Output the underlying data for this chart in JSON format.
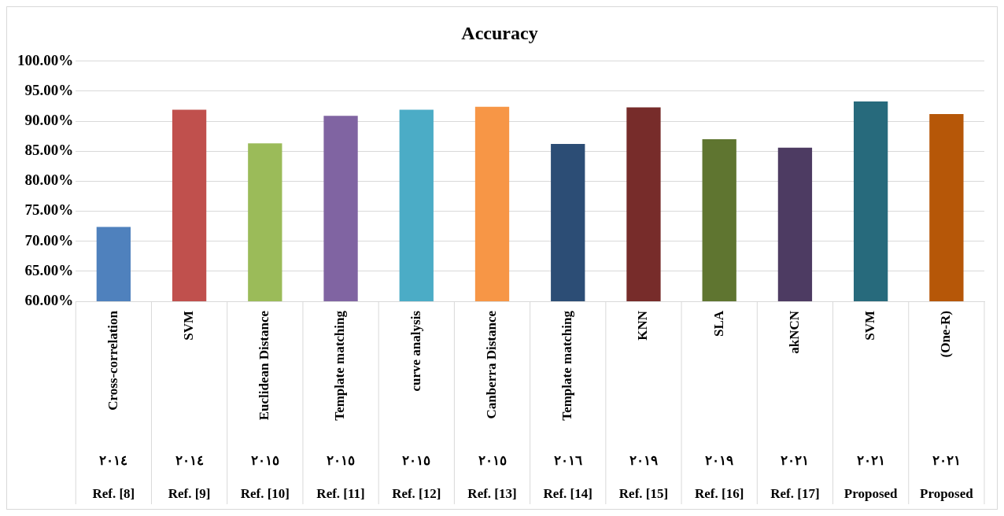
{
  "chart_data": {
    "type": "bar",
    "title": "Accuracy",
    "categories": [
      "Cross-correlation\n٢٠١٤\nRef. [8]",
      "SVM\n٢٠١٤\nRef. [9]",
      "Euclidean Distance\n٢٠١٥\nRef. [10]",
      "Template matching\n٢٠١٥\nRef. [11]",
      "curve analysis\n٢٠١٥\nRef. [12]",
      "Canberra Distance\n٢٠١٥\nRef. [13]",
      "Template matching\n٢٠١٦\nRef. [14]",
      "KNN\n٢٠١٩\nRef. [15]",
      "SLA\n٢٠١٩\nRef. [16]",
      "akNCN\n٢٠٢١\nRef. [17]",
      "SVM\n٢٠٢١\nProposed",
      "(One-R)\n٢٠٢١\nProposed"
    ],
    "values": [
      72.4,
      91.9,
      86.3,
      90.9,
      91.9,
      92.4,
      86.2,
      92.3,
      87.0,
      85.6,
      93.3,
      91.2
    ],
    "colors": [
      "#4f81bd",
      "#c0504d",
      "#9bbb59",
      "#8064a2",
      "#4bacc6",
      "#f79646",
      "#2c4d75",
      "#772c2a",
      "#5f7530",
      "#4d3b62",
      "#276a7c",
      "#b65708"
    ],
    "ylim": [
      60,
      100
    ],
    "yticks": [
      {
        "value": 60,
        "label": "60.00%"
      },
      {
        "value": 65,
        "label": "65.00%"
      },
      {
        "value": 70,
        "label": "70.00%"
      },
      {
        "value": 75,
        "label": "75.00%"
      },
      {
        "value": 80,
        "label": "80.00%"
      },
      {
        "value": 85,
        "label": "85.00%"
      },
      {
        "value": 90,
        "label": "90.00%"
      },
      {
        "value": 95,
        "label": "95.00%"
      },
      {
        "value": 100,
        "label": "100.00%"
      }
    ],
    "grid": "y",
    "legend": false
  }
}
